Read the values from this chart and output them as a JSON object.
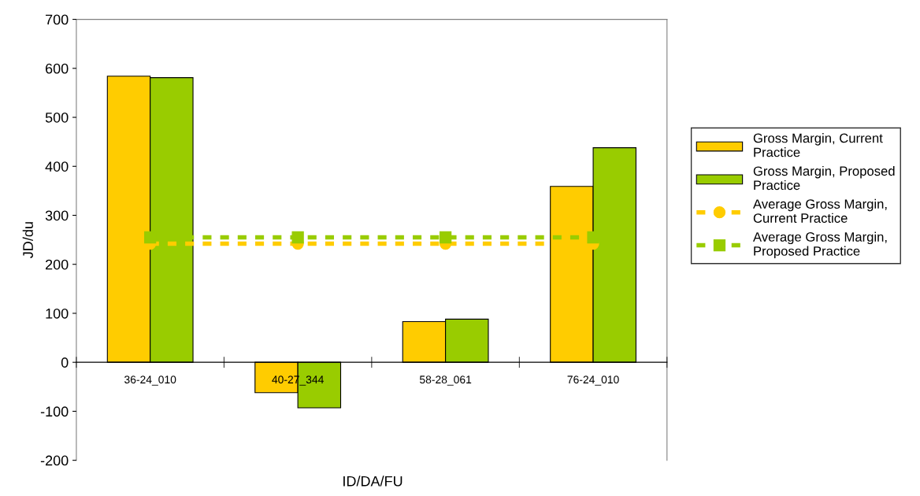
{
  "chart_data": {
    "type": "bar",
    "xlabel": "ID/DA/FU",
    "ylabel": "JD/du",
    "categories": [
      "36-24_010",
      "40-27_344",
      "58-28_061",
      "76-24_010"
    ],
    "series": [
      {
        "name": "Gross Margin, Current\nPractice",
        "color": "#ffcc00",
        "values": [
          584,
          -62,
          83,
          359
        ]
      },
      {
        "name": "Gross Margin, Proposed\nPractice",
        "color": "#99cc00",
        "values": [
          581,
          -93,
          88,
          438
        ]
      },
      {
        "type": "line",
        "name": "Average Gross Margin,\nCurrent Practice",
        "color": "#ffcc00",
        "marker": "circle",
        "line_style": "dashed",
        "values": [
          242,
          242,
          242,
          242
        ]
      },
      {
        "type": "line",
        "name": "Average Gross Margin,\nProposed Practice",
        "color": "#99cc00",
        "marker": "square",
        "line_style": "dashed",
        "values": [
          255,
          255,
          255,
          255
        ]
      }
    ],
    "ylim": [
      -200,
      700
    ],
    "yticks": [
      -200,
      -100,
      0,
      100,
      200,
      300,
      400,
      500,
      600,
      700
    ],
    "grid": false,
    "legend": "right"
  }
}
